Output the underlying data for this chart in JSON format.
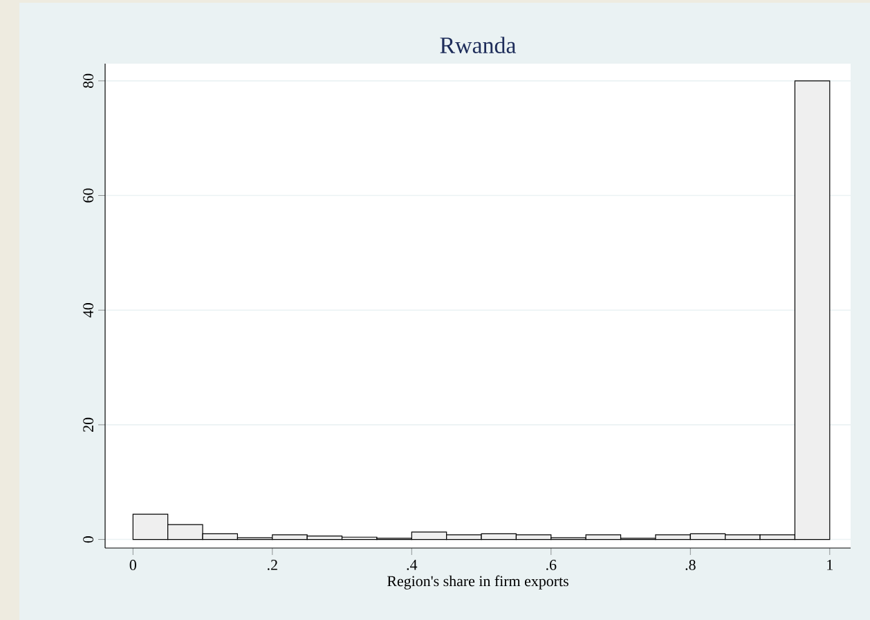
{
  "chart_data": {
    "type": "histogram",
    "title": "Rwanda",
    "xlabel": "Region's share in firm exports",
    "bins": [
      0,
      0.05,
      0.1,
      0.15,
      0.2,
      0.25,
      0.3,
      0.35,
      0.4,
      0.45,
      0.5,
      0.55,
      0.6,
      0.65,
      0.7,
      0.75,
      0.8,
      0.85,
      0.9,
      0.95,
      1
    ],
    "values": [
      4.4,
      2.6,
      1.0,
      0.3,
      0.8,
      0.6,
      0.4,
      0.2,
      1.3,
      0.8,
      1.0,
      0.8,
      0.3,
      0.8,
      0.2,
      0.8,
      1.0,
      0.8,
      0.8,
      80
    ],
    "color": "#efefef",
    "xlim": [
      -0.04,
      1.03
    ],
    "ylim": [
      -1.5,
      83
    ],
    "xticks": [
      0,
      {
        "value": 0.2,
        "label": ".2"
      },
      {
        "value": 0.4,
        "label": ".4"
      },
      {
        "value": 0.6,
        "label": ".6"
      },
      {
        "value": 0.8,
        "label": ".8"
      },
      1
    ],
    "yticks": [
      0,
      20,
      40,
      60,
      80
    ],
    "grid": "y"
  }
}
